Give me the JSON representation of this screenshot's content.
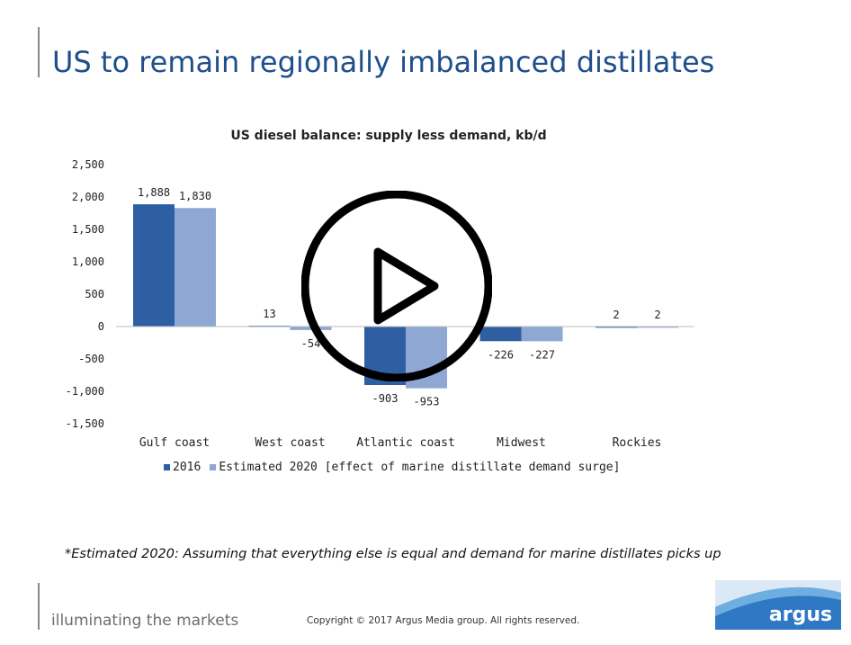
{
  "slide": {
    "title": "US to remain regionally imbalanced distillates",
    "footnote": "*Estimated 2020: Assuming that everything else is equal and demand for marine distillates picks up",
    "tagline": "illuminating the markets",
    "copyright": "Copyright © 2017 Argus Media group. All rights reserved.",
    "logo_text": "argus"
  },
  "colors": {
    "title": "#1f4e8c",
    "series_2016": "#2e5fa3",
    "series_2020": "#8fa8d3",
    "logo_blue": "#2f79c4"
  },
  "player": {
    "icon": "play-icon"
  },
  "chart_data": {
    "type": "bar",
    "title": "US diesel balance: supply less demand, kb/d",
    "xlabel": "",
    "ylabel": "",
    "categories": [
      "Gulf coast",
      "West coast",
      "Atlantic coast",
      "Midwest",
      "Rockies"
    ],
    "series": [
      {
        "name": "2016",
        "values": [
          1888,
          13,
          -903,
          -226,
          2
        ],
        "labels": [
          "1,888",
          "13",
          "-903",
          "-226",
          "2"
        ]
      },
      {
        "name": "Estimated 2020 [effect of marine distillate demand surge]",
        "values": [
          1830,
          -54,
          -953,
          -227,
          2
        ],
        "labels": [
          "1,830",
          "-54",
          "-953",
          "-227",
          "2"
        ]
      }
    ],
    "ylim": [
      -1500,
      2500
    ],
    "yticks": [
      2500,
      2000,
      1500,
      1000,
      500,
      0,
      -500,
      -1000,
      -1500
    ],
    "ytick_labels": [
      "2,500",
      "2,000",
      "1,500",
      "1,000",
      "500",
      "0",
      "-500",
      "-1,000",
      "-1,500"
    ],
    "grid": false,
    "legend_position": "bottom"
  }
}
